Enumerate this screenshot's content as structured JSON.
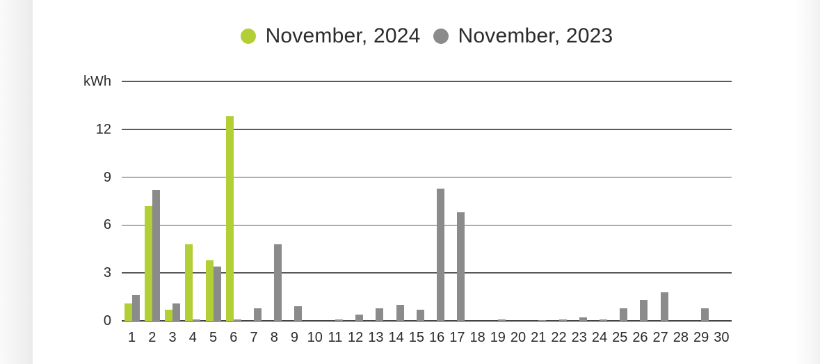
{
  "chart_data": {
    "type": "bar",
    "title": "",
    "ylabel": "kWh",
    "xlabel": "",
    "unit": "kWh",
    "grid": true,
    "legend_position": "top",
    "ylim": [
      0,
      15
    ],
    "yticks": [
      {
        "label": "kWh",
        "value": 15
      },
      {
        "label": "12",
        "value": 12
      },
      {
        "label": "9",
        "value": 9
      },
      {
        "label": "6",
        "value": 6
      },
      {
        "label": "3",
        "value": 3
      },
      {
        "label": "0",
        "value": 0
      }
    ],
    "categories": [
      "1",
      "2",
      "3",
      "4",
      "5",
      "6",
      "7",
      "8",
      "9",
      "10",
      "11",
      "12",
      "13",
      "14",
      "15",
      "16",
      "17",
      "18",
      "19",
      "20",
      "21",
      "22",
      "23",
      "24",
      "25",
      "26",
      "27",
      "28",
      "29",
      "30"
    ],
    "series": [
      {
        "name": "November, 2024",
        "color": "#b2cf35",
        "values": [
          1.1,
          7.2,
          0.7,
          4.8,
          3.8,
          12.8,
          0,
          0,
          0,
          0,
          0,
          0,
          0,
          0,
          0,
          0,
          0,
          0,
          0,
          0,
          0,
          0,
          0,
          0,
          0,
          0,
          0,
          0,
          0,
          0
        ]
      },
      {
        "name": "November, 2023",
        "color": "#8b8b8b",
        "values": [
          1.6,
          8.2,
          1.1,
          0.1,
          3.4,
          0.1,
          0.8,
          4.8,
          0.9,
          0,
          0.1,
          0.4,
          0.8,
          1.0,
          0.7,
          8.3,
          6.8,
          0,
          0.1,
          0,
          0.05,
          0.1,
          0.2,
          0.1,
          0.8,
          1.3,
          1.8,
          0,
          0.8,
          0
        ]
      }
    ]
  },
  "colors": {
    "grid": "#58585c",
    "baseline": "#434448",
    "text": "#2b2b2e",
    "background": "#ffffff"
  }
}
